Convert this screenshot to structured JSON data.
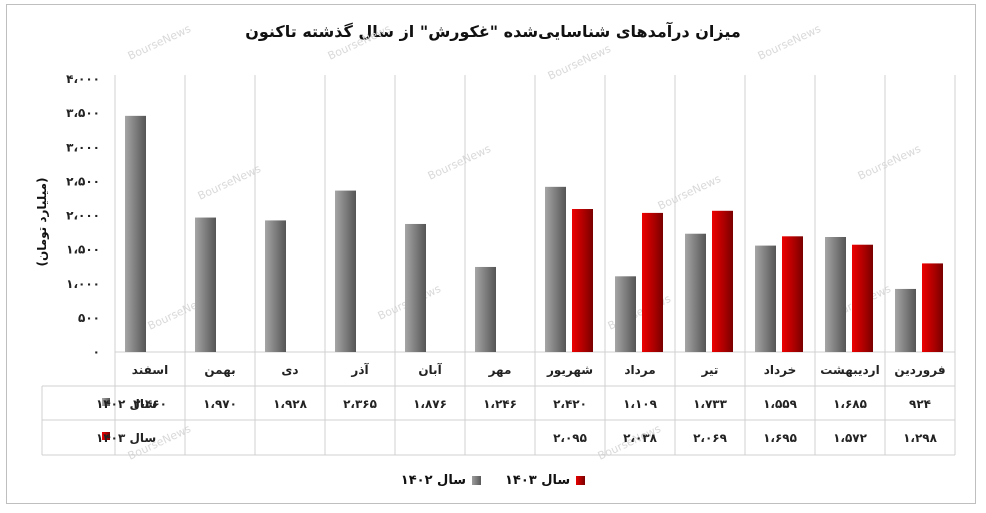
{
  "chart_data": {
    "type": "bar",
    "title": "میزان درآمدهای شناسایی‌شده \"غکورش\" از سال گذشته تاکنون",
    "ylabel": "(میلیارد تومان)",
    "ylim": [
      0,
      4000
    ],
    "yticks": [
      0,
      500,
      1000,
      1500,
      2000,
      2500,
      3000,
      3500,
      4000
    ],
    "ytick_labels": [
      "۰",
      "۵۰۰",
      "۱،۰۰۰",
      "۱،۵۰۰",
      "۲،۰۰۰",
      "۲،۵۰۰",
      "۳،۰۰۰",
      "۳،۵۰۰",
      "۴،۰۰۰"
    ],
    "categories": [
      "فروردین",
      "اردیبهشت",
      "خرداد",
      "تیر",
      "مرداد",
      "شهریور",
      "مهر",
      "آبان",
      "آذر",
      "دی",
      "بهمن",
      "اسفند"
    ],
    "series": [
      {
        "name": "سال ۱۴۰۲",
        "color": "#7f7f7f",
        "values": [
          924,
          1685,
          1559,
          1733,
          1109,
          2420,
          1246,
          1876,
          2365,
          1928,
          1970,
          3460
        ],
        "labels": [
          "۹۲۴",
          "۱،۶۸۵",
          "۱،۵۵۹",
          "۱،۷۳۳",
          "۱،۱۰۹",
          "۲،۴۲۰",
          "۱،۲۴۶",
          "۱،۸۷۶",
          "۲،۳۶۵",
          "۱،۹۲۸",
          "۱،۹۷۰",
          "۳،۴۶۰"
        ]
      },
      {
        "name": "سال ۱۴۰۳",
        "color": "#c00000",
        "values": [
          1298,
          1572,
          1695,
          2069,
          2038,
          2095,
          null,
          null,
          null,
          null,
          null,
          null
        ],
        "labels": [
          "۱،۲۹۸",
          "۱،۵۷۲",
          "۱،۶۹۵",
          "۲،۰۶۹",
          "۲،۰۳۸",
          "۲،۰۹۵",
          "",
          "",
          "",
          "",
          "",
          ""
        ]
      }
    ],
    "grid": "vertical",
    "legend": "bottom",
    "watermark": "BourseNews"
  }
}
